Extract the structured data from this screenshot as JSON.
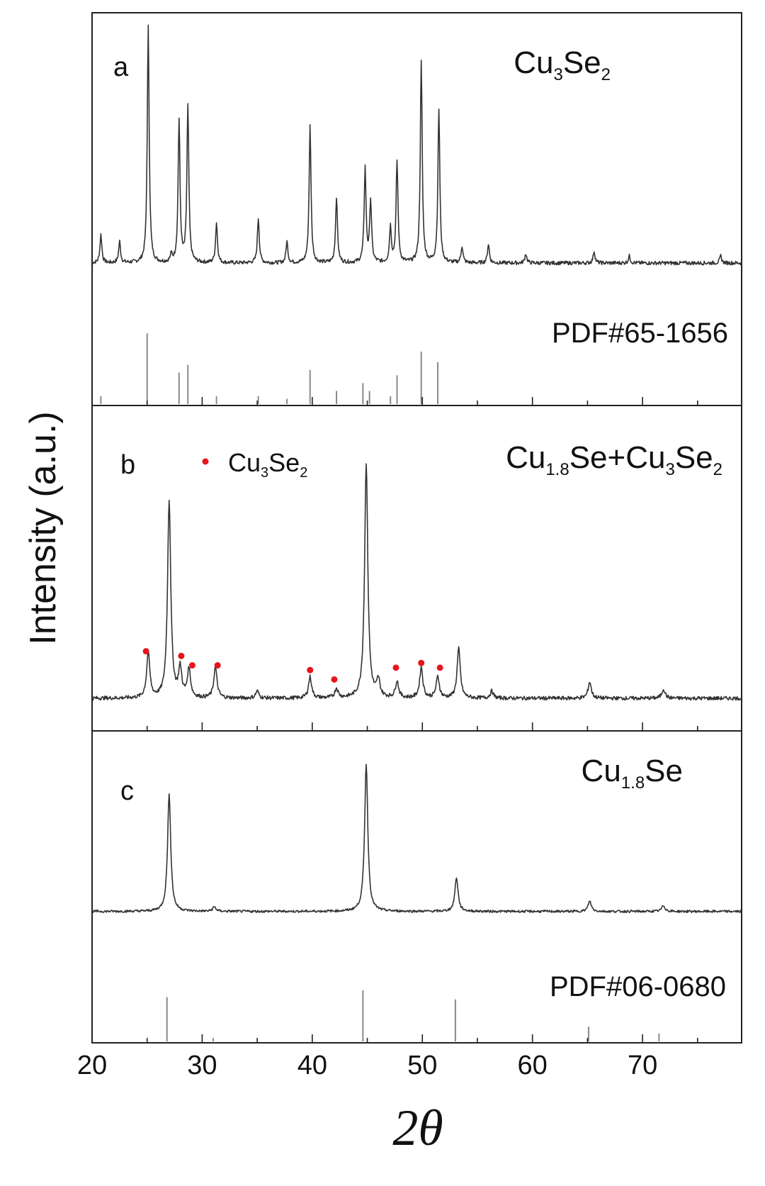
{
  "y_axis_label": "Intensity (a.u.)",
  "x_axis_label": "2θ",
  "x_ticks": [
    "20",
    "30",
    "40",
    "50",
    "60",
    "70"
  ],
  "colors": {
    "trace": "#333333",
    "reference": "#8a8a8a",
    "marker": "#e8141c",
    "frame": "#222222"
  },
  "panels": [
    {
      "letter": "a",
      "label_parts": [
        [
          "Cu",
          ""
        ],
        [
          "3",
          "sub"
        ],
        [
          "Se",
          ""
        ],
        [
          "2",
          "sub"
        ]
      ],
      "reference": "PDF#65-1656"
    },
    {
      "letter": "b",
      "label_parts": [
        [
          "Cu",
          ""
        ],
        [
          "1.8",
          "sub"
        ],
        [
          "Se+Cu",
          ""
        ],
        [
          "3",
          "sub"
        ],
        [
          "Se",
          ""
        ],
        [
          "2",
          "sub"
        ]
      ],
      "legend_parts": [
        [
          "Cu",
          ""
        ],
        [
          "3",
          "sub"
        ],
        [
          "Se",
          ""
        ],
        [
          "2",
          "sub"
        ]
      ]
    },
    {
      "letter": "c",
      "label_parts": [
        [
          "Cu",
          ""
        ],
        [
          "1.8",
          "sub"
        ],
        [
          "Se",
          ""
        ]
      ],
      "reference": "PDF#06-0680"
    }
  ],
  "chart_data": [
    {
      "type": "line",
      "title": "Cu3Se2",
      "xlabel": "2θ",
      "ylabel": "Intensity (a.u.)",
      "xlim": [
        20,
        79
      ],
      "ylim": [
        0,
        100
      ],
      "grid": false,
      "x_ticks": [
        20,
        30,
        40,
        50,
        60,
        70
      ],
      "series": [
        {
          "role": "pattern",
          "baseline": 6,
          "peaks": [
            [
              20.8,
              12
            ],
            [
              22.5,
              9
            ],
            [
              25.1,
              100
            ],
            [
              27.2,
              3
            ],
            [
              27.9,
              60
            ],
            [
              28.7,
              66
            ],
            [
              31.3,
              17
            ],
            [
              35.1,
              19
            ],
            [
              37.7,
              9
            ],
            [
              39.8,
              58
            ],
            [
              42.2,
              28
            ],
            [
              44.8,
              40
            ],
            [
              45.3,
              26
            ],
            [
              47.1,
              15
            ],
            [
              47.7,
              43
            ],
            [
              49.9,
              85
            ],
            [
              51.5,
              65
            ],
            [
              53.6,
              7
            ],
            [
              56.0,
              8
            ],
            [
              59.4,
              4
            ],
            [
              65.6,
              5
            ],
            [
              68.8,
              3
            ],
            [
              77.1,
              3
            ]
          ]
        },
        {
          "role": "reference",
          "name": "PDF#65-1656",
          "sticks": [
            [
              20.8,
              3
            ],
            [
              25.0,
              27
            ],
            [
              27.9,
              12
            ],
            [
              28.7,
              15
            ],
            [
              31.3,
              3
            ],
            [
              35.1,
              3
            ],
            [
              37.7,
              2
            ],
            [
              39.8,
              13
            ],
            [
              42.2,
              5
            ],
            [
              44.6,
              8
            ],
            [
              45.2,
              5
            ],
            [
              47.1,
              3
            ],
            [
              47.7,
              11
            ],
            [
              49.9,
              20
            ],
            [
              51.4,
              16
            ]
          ]
        }
      ]
    },
    {
      "type": "line",
      "title": "Cu1.8Se+Cu3Se2",
      "xlabel": "2θ",
      "ylabel": "Intensity (a.u.)",
      "xlim": [
        20,
        79
      ],
      "ylim": [
        0,
        100
      ],
      "grid": false,
      "x_ticks": [
        20,
        30,
        40,
        50,
        60,
        70
      ],
      "series": [
        {
          "role": "pattern",
          "baseline": 3,
          "peaks": [
            [
              25.1,
              19
            ],
            [
              27.0,
              84
            ],
            [
              28.0,
              12
            ],
            [
              28.8,
              12
            ],
            [
              31.2,
              13
            ],
            [
              35.0,
              3
            ],
            [
              39.8,
              9
            ],
            [
              42.2,
              4
            ],
            [
              44.9,
              100
            ],
            [
              46.0,
              7
            ],
            [
              47.7,
              7
            ],
            [
              49.9,
              13
            ],
            [
              51.4,
              9
            ],
            [
              53.3,
              21
            ],
            [
              56.3,
              3
            ],
            [
              65.2,
              7
            ],
            [
              71.9,
              4
            ]
          ]
        },
        {
          "role": "markers",
          "name": "Cu3Se2",
          "points": [
            [
              24.9,
              23
            ],
            [
              28.1,
              21
            ],
            [
              29.1,
              17
            ],
            [
              31.4,
              17
            ],
            [
              39.8,
              15
            ],
            [
              42.0,
              11
            ],
            [
              47.6,
              16
            ],
            [
              49.9,
              18
            ],
            [
              51.6,
              16
            ]
          ]
        }
      ]
    },
    {
      "type": "line",
      "title": "Cu1.8Se",
      "xlabel": "2θ",
      "ylabel": "Intensity (a.u.)",
      "xlim": [
        20,
        79
      ],
      "ylim": [
        0,
        100
      ],
      "grid": false,
      "x_ticks": [
        20,
        30,
        40,
        50,
        60,
        70
      ],
      "series": [
        {
          "role": "pattern",
          "baseline": 4,
          "peaks": [
            [
              27.0,
              79
            ],
            [
              31.1,
              3
            ],
            [
              44.9,
              100
            ],
            [
              53.1,
              23
            ],
            [
              65.2,
              7
            ],
            [
              71.9,
              4
            ]
          ]
        },
        {
          "role": "reference",
          "name": "PDF#06-0680",
          "sticks": [
            [
              26.8,
              39
            ],
            [
              31.0,
              3
            ],
            [
              44.6,
              45
            ],
            [
              53.0,
              37
            ],
            [
              65.1,
              13
            ],
            [
              71.5,
              7
            ]
          ]
        }
      ]
    }
  ]
}
